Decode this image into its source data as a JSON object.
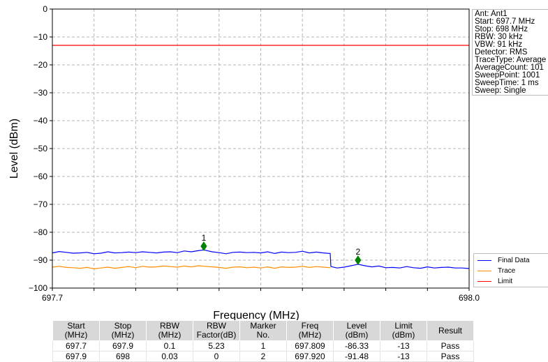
{
  "chart_data": {
    "type": "line",
    "xlabel": "Frequency (MHz)",
    "ylabel": "Level (dBm)",
    "xlim": [
      697.7,
      698.0
    ],
    "ylim": [
      -100,
      0
    ],
    "x_ticks": [
      "697.7",
      "698.0"
    ],
    "y_ticks": [
      "0",
      "−10",
      "−20",
      "−30",
      "−40",
      "−50",
      "−60",
      "−70",
      "−80",
      "−90",
      "−100"
    ],
    "grid": true,
    "legend_placement": "lower-right",
    "series": [
      {
        "name": "Final Data",
        "color": "#0000ff",
        "points": [
          [
            697.7,
            -87.4
          ],
          [
            697.705,
            -86.9
          ],
          [
            697.71,
            -87.2
          ],
          [
            697.715,
            -87.5
          ],
          [
            697.72,
            -87.4
          ],
          [
            697.725,
            -87.2
          ],
          [
            697.73,
            -87.7
          ],
          [
            697.735,
            -87.5
          ],
          [
            697.74,
            -87.0
          ],
          [
            697.745,
            -87.4
          ],
          [
            697.75,
            -87.3
          ],
          [
            697.755,
            -87.1
          ],
          [
            697.76,
            -87.3
          ],
          [
            697.765,
            -87.0
          ],
          [
            697.77,
            -87.2
          ],
          [
            697.775,
            -87.4
          ],
          [
            697.78,
            -87.1
          ],
          [
            697.785,
            -87.0
          ],
          [
            697.79,
            -87.3
          ],
          [
            697.795,
            -86.7
          ],
          [
            697.8,
            -87.0
          ],
          [
            697.805,
            -86.6
          ],
          [
            697.809,
            -86.33
          ],
          [
            697.815,
            -87.0
          ],
          [
            697.82,
            -87.3
          ],
          [
            697.825,
            -87.7
          ],
          [
            697.83,
            -87.2
          ],
          [
            697.835,
            -87.1
          ],
          [
            697.84,
            -87.3
          ],
          [
            697.845,
            -87.2
          ],
          [
            697.85,
            -87.4
          ],
          [
            697.855,
            -87.0
          ],
          [
            697.86,
            -87.6
          ],
          [
            697.865,
            -87.1
          ],
          [
            697.87,
            -87.3
          ],
          [
            697.875,
            -87.2
          ],
          [
            697.88,
            -86.8
          ],
          [
            697.885,
            -87.4
          ],
          [
            697.89,
            -87.1
          ],
          [
            697.895,
            -87.4
          ],
          [
            697.9,
            -87.6
          ],
          [
            697.9005,
            -92.3
          ],
          [
            697.905,
            -92.8
          ],
          [
            697.91,
            -92.5
          ],
          [
            697.915,
            -92.0
          ],
          [
            697.92,
            -91.48
          ],
          [
            697.925,
            -92.0
          ],
          [
            697.93,
            -92.4
          ],
          [
            697.935,
            -92.1
          ],
          [
            697.94,
            -92.7
          ],
          [
            697.945,
            -92.6
          ],
          [
            697.95,
            -92.8
          ],
          [
            697.955,
            -92.3
          ],
          [
            697.96,
            -92.7
          ],
          [
            697.965,
            -92.9
          ],
          [
            697.97,
            -92.4
          ],
          [
            697.975,
            -92.8
          ],
          [
            697.98,
            -92.6
          ],
          [
            697.985,
            -92.5
          ],
          [
            697.99,
            -92.8
          ],
          [
            697.995,
            -92.8
          ],
          [
            698.0,
            -93.0
          ]
        ]
      },
      {
        "name": "Trace",
        "color": "#ff8c00",
        "points": [
          [
            697.7,
            -92.5
          ],
          [
            697.705,
            -92.2
          ],
          [
            697.71,
            -92.6
          ],
          [
            697.715,
            -92.7
          ],
          [
            697.72,
            -92.9
          ],
          [
            697.725,
            -92.6
          ],
          [
            697.73,
            -93.1
          ],
          [
            697.735,
            -92.8
          ],
          [
            697.74,
            -92.5
          ],
          [
            697.745,
            -92.9
          ],
          [
            697.75,
            -92.6
          ],
          [
            697.755,
            -92.3
          ],
          [
            697.76,
            -92.7
          ],
          [
            697.765,
            -92.2
          ],
          [
            697.77,
            -92.5
          ],
          [
            697.775,
            -92.4
          ],
          [
            697.78,
            -92.1
          ],
          [
            697.785,
            -92.3
          ],
          [
            697.79,
            -92.5
          ],
          [
            697.795,
            -92.1
          ],
          [
            697.8,
            -92.4
          ],
          [
            697.805,
            -92.0
          ],
          [
            697.81,
            -92.2
          ],
          [
            697.815,
            -92.4
          ],
          [
            697.82,
            -92.6
          ],
          [
            697.825,
            -92.9
          ],
          [
            697.83,
            -92.5
          ],
          [
            697.835,
            -92.4
          ],
          [
            697.84,
            -92.7
          ],
          [
            697.845,
            -92.5
          ],
          [
            697.85,
            -92.8
          ],
          [
            697.855,
            -92.4
          ],
          [
            697.86,
            -92.9
          ],
          [
            697.865,
            -92.4
          ],
          [
            697.87,
            -92.6
          ],
          [
            697.875,
            -92.5
          ],
          [
            697.88,
            -92.2
          ],
          [
            697.885,
            -92.6
          ],
          [
            697.89,
            -92.3
          ],
          [
            697.895,
            -92.5
          ],
          [
            697.9,
            -92.7
          ]
        ]
      },
      {
        "name": "Limit",
        "color": "#ff0000",
        "points": [
          [
            697.7,
            -13
          ],
          [
            698.0,
            -13
          ]
        ]
      }
    ],
    "markers": [
      {
        "label": "1",
        "x": 697.809,
        "y": -85.0,
        "color": "#008000"
      },
      {
        "label": "2",
        "x": 697.92,
        "y": -90.0,
        "color": "#008000"
      }
    ]
  },
  "info": {
    "lines": [
      "Ant: Ant1",
      "Start: 697.7 MHz",
      "Stop: 698 MHz",
      "RBW: 30 kHz",
      "VBW: 91 kHz",
      "Detector: RMS",
      "TraceType: Average",
      "AverageCount: 101",
      "SweepPoint: 1001",
      "SweepTime: 1 ms",
      "Sweep: Single"
    ]
  },
  "table": {
    "headers": [
      [
        "Start",
        "(MHz)"
      ],
      [
        "Stop",
        "(MHz)"
      ],
      [
        "RBW",
        "(MHz)"
      ],
      [
        "RBW",
        "Factor(dB)"
      ],
      [
        "Marker",
        "No."
      ],
      [
        "Freq",
        "(MHz)"
      ],
      [
        "Level",
        "(dBm)"
      ],
      [
        "Limit",
        "(dBm)"
      ],
      [
        "Result"
      ]
    ],
    "rows": [
      [
        "697.7",
        "697.9",
        "0.1",
        "5.23",
        "1",
        "697.809",
        "-86.33",
        "-13",
        "Pass"
      ],
      [
        "697.9",
        "698",
        "0.03",
        "0",
        "2",
        "697.920",
        "-91.48",
        "-13",
        "Pass"
      ]
    ]
  }
}
